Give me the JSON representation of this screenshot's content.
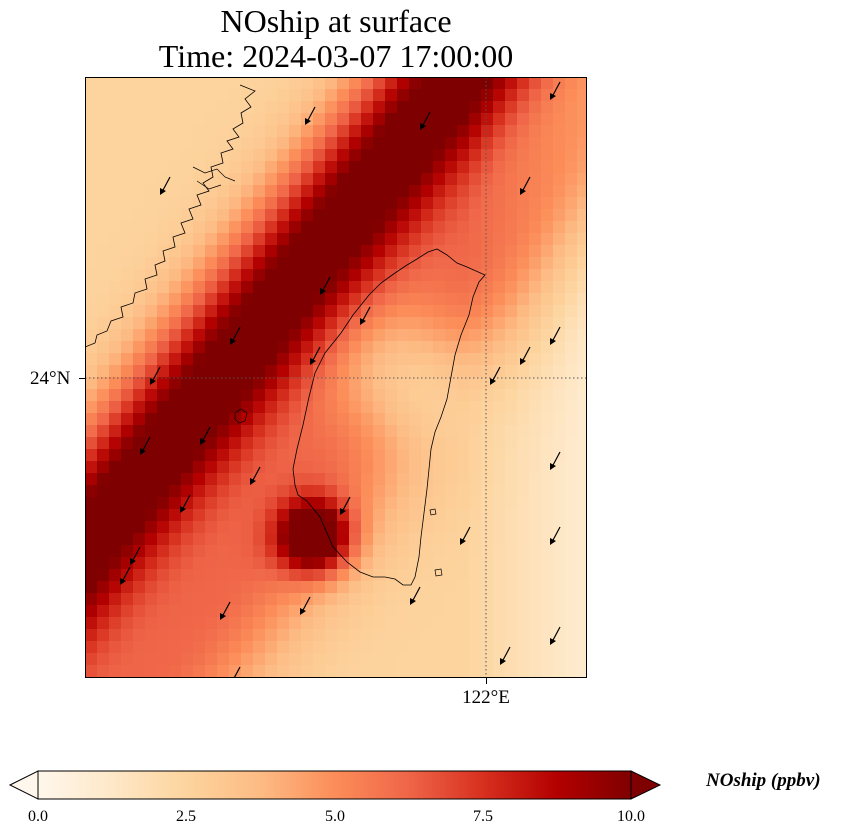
{
  "title": {
    "line1": "NOship at surface",
    "line2": "Time: 2024-03-07 17:00:00"
  },
  "axes": {
    "lat_label": "24°N",
    "lon_label": "122°E",
    "gridlines": "dotted"
  },
  "colorbar": {
    "label": "NOship (ppbv)",
    "min": 0.0,
    "max": 10.0,
    "extend": "both",
    "colormap": "OrRd",
    "ticks": [
      "0.0",
      "2.5",
      "5.0",
      "7.5",
      "10.0"
    ]
  },
  "colors": {
    "low": "#fff7ec",
    "high": "#7f0000",
    "coastline": "#000000"
  }
}
